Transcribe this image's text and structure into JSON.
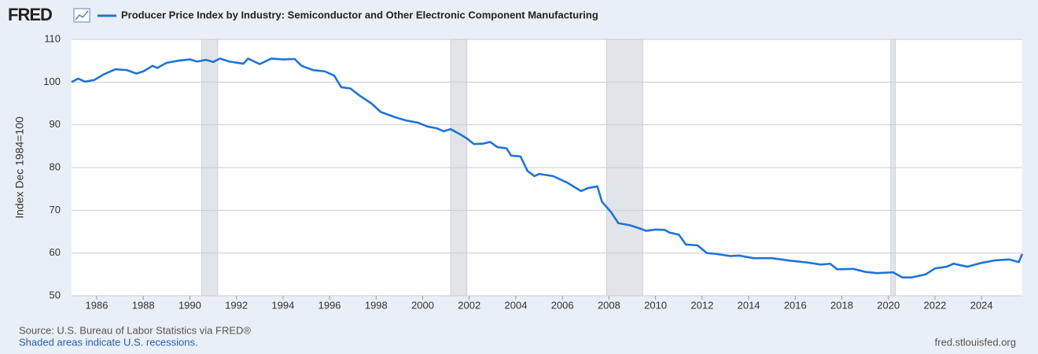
{
  "chart_data": {
    "type": "line",
    "logo": "FRED",
    "y_label": "Index Dec 1984=100",
    "source": "Source: U.S. Bureau of Labor Statistics via FRED®",
    "note": "Shaded areas indicate U.S. recessions.",
    "site": "fred.stlouisfed.org",
    "grid": true,
    "xlim": [
      1984.92,
      2025.75
    ],
    "ylim": [
      50,
      110
    ],
    "xticks": [
      1986,
      1988,
      1990,
      1992,
      1994,
      1996,
      1998,
      2000,
      2002,
      2004,
      2006,
      2008,
      2010,
      2012,
      2014,
      2016,
      2018,
      2020,
      2022,
      2024
    ],
    "yticks": [
      50,
      60,
      70,
      80,
      90,
      100,
      110
    ],
    "recessions": [
      {
        "start": 1990.5,
        "end": 1991.2
      },
      {
        "start": 2001.2,
        "end": 2001.9
      },
      {
        "start": 2007.9,
        "end": 2009.45
      },
      {
        "start": 2020.1,
        "end": 2020.3
      }
    ],
    "recession_color": "#e1e5ea",
    "x": [
      1984.92,
      1985.2,
      1985.5,
      1985.9,
      1986.3,
      1986.8,
      1987.3,
      1987.7,
      1988.0,
      1988.4,
      1988.6,
      1989.0,
      1989.5,
      1990.0,
      1990.3,
      1990.7,
      1991.0,
      1991.3,
      1991.7,
      1992.3,
      1992.5,
      1993.0,
      1993.5,
      1994.0,
      1994.5,
      1994.8,
      1995.3,
      1995.8,
      1996.2,
      1996.5,
      1996.9,
      1997.3,
      1997.8,
      1998.2,
      1998.8,
      1999.3,
      1999.8,
      2000.2,
      2000.6,
      2000.9,
      2001.2,
      2001.6,
      2001.9,
      2002.2,
      2002.6,
      2002.9,
      2003.2,
      2003.6,
      2003.8,
      2004.2,
      2004.5,
      2004.8,
      2005.0,
      2005.6,
      2006.2,
      2006.8,
      2007.1,
      2007.5,
      2007.7,
      2008.1,
      2008.4,
      2008.9,
      2009.3,
      2009.6,
      2010.0,
      2010.4,
      2010.6,
      2011.0,
      2011.3,
      2011.8,
      2012.2,
      2012.6,
      2013.2,
      2013.6,
      2014.2,
      2015.0,
      2015.8,
      2016.5,
      2017.1,
      2017.5,
      2017.8,
      2018.5,
      2019.0,
      2019.5,
      2020.2,
      2020.6,
      2021.0,
      2021.6,
      2022.0,
      2022.5,
      2022.8,
      2023.4,
      2024.0,
      2024.6,
      2025.2,
      2025.6,
      2025.75
    ],
    "series": [
      {
        "name": "Producer Price Index by Industry: Semiconductor and Other Electronic Component Manufacturing",
        "color": "#1f74d6",
        "values": [
          100,
          100.8,
          100.1,
          100.5,
          101.8,
          103,
          102.8,
          102,
          102.5,
          103.8,
          103.3,
          104.5,
          105,
          105.3,
          104.8,
          105.2,
          104.7,
          105.5,
          104.8,
          104.3,
          105.5,
          104.2,
          105.5,
          105.3,
          105.4,
          103.8,
          102.8,
          102.5,
          101.5,
          98.8,
          98.5,
          96.8,
          95,
          93,
          91.8,
          91,
          90.5,
          89.6,
          89.2,
          88.5,
          89,
          87.8,
          86.8,
          85.5,
          85.6,
          86,
          84.8,
          84.5,
          82.8,
          82.6,
          79.2,
          78,
          78.5,
          78,
          76.5,
          74.5,
          75.2,
          75.6,
          72,
          69.5,
          67,
          66.5,
          65.8,
          65.2,
          65.5,
          65.4,
          64.8,
          64.3,
          62,
          61.8,
          60,
          59.8,
          59.3,
          59.4,
          58.8,
          58.8,
          58.2,
          57.8,
          57.3,
          57.5,
          56.2,
          56.3,
          55.6,
          55.3,
          55.5,
          54.3,
          54.3,
          55,
          56.4,
          56.8,
          57.5,
          56.8,
          57.7,
          58.3,
          58.5,
          57.9,
          59.8
        ]
      }
    ]
  }
}
